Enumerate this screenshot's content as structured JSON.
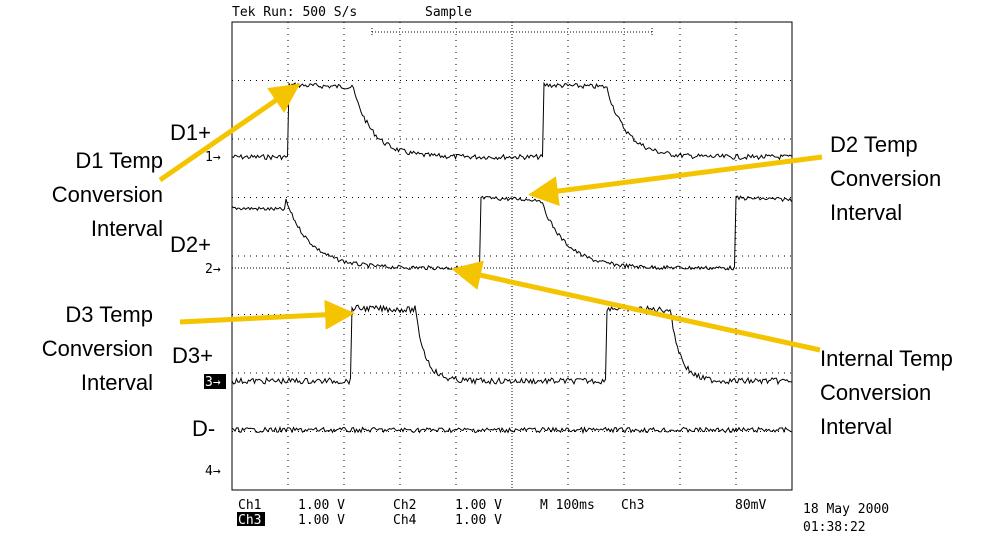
{
  "header": {
    "run": "Tek Run: 500 S/s",
    "mode": "Sample"
  },
  "channels": {
    "ch1": "1→",
    "ch2": "2→",
    "ch3": "3→",
    "ch4": "4→"
  },
  "signals": {
    "d1": "D1+",
    "d2": "D2+",
    "d3": "D3+",
    "dminus": "D-"
  },
  "annotations": {
    "d1": [
      "D1 Temp",
      "Conversion",
      "Interval"
    ],
    "d2": [
      "D2 Temp",
      "Conversion",
      "Interval"
    ],
    "d3": [
      "D3 Temp",
      "Conversion",
      "Interval"
    ],
    "internal": [
      "Internal Temp",
      "Conversion",
      "Interval"
    ]
  },
  "readout": {
    "row1": [
      "Ch1",
      "1.00 V",
      "Ch2",
      "1.00 V",
      "M 100ms",
      "Ch3",
      "80mV"
    ],
    "row2": [
      "Ch3",
      "1.00 V",
      "Ch4",
      "1.00 V"
    ],
    "date": "18 May 2000",
    "time": "01:38:22"
  }
}
